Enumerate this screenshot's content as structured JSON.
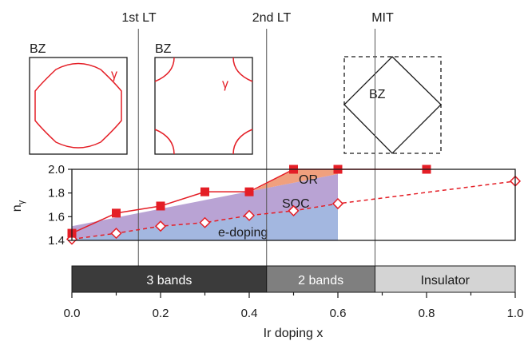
{
  "chart_data": {
    "type": "line",
    "xlabel": "Ir doping x",
    "ylabel": "n",
    "ylabel_sub": "γ",
    "xlim": [
      0.0,
      1.0
    ],
    "ylim": [
      1.4,
      2.0
    ],
    "x_ticks": [
      "0.0",
      "0.2",
      "0.4",
      "0.6",
      "0.8",
      "1.0"
    ],
    "y_ticks": [
      "1.4",
      "1.6",
      "1.8",
      "2.0"
    ],
    "series": [
      {
        "marker": "filled-square",
        "color": "#e41e26",
        "line": "solid",
        "x": [
          0.0,
          0.1,
          0.2,
          0.3,
          0.4,
          0.5,
          0.6,
          0.8
        ],
        "y": [
          1.46,
          1.63,
          1.69,
          1.81,
          1.81,
          2.0,
          2.0,
          2.0
        ]
      },
      {
        "marker": "open-diamond",
        "color": "#e41e26",
        "line": "dashed",
        "x": [
          0.0,
          0.1,
          0.2,
          0.3,
          0.4,
          0.5,
          0.6,
          1.0
        ],
        "y": [
          1.41,
          1.46,
          1.52,
          1.55,
          1.61,
          1.65,
          1.71,
          1.9
        ]
      }
    ],
    "regions": [
      {
        "label": "e-doping",
        "color": "#a3b7e0"
      },
      {
        "label": "SOC",
        "color": "#b9a3d4"
      },
      {
        "label": "OR",
        "color": "#f0a07e"
      }
    ],
    "transitions": [
      {
        "label": "1st LT",
        "x": 0.15
      },
      {
        "label": "2nd LT",
        "x": 0.45
      },
      {
        "label": "MIT",
        "x": 0.7
      }
    ],
    "phase_bar": [
      {
        "label": "3 bands",
        "from": 0.0,
        "to": 0.45,
        "color": "#3b3b3b"
      },
      {
        "label": "2 bands",
        "from": 0.45,
        "to": 0.7,
        "color": "#7f7f7f"
      },
      {
        "label": "Insulator",
        "from": 0.7,
        "to": 1.0,
        "color": "#d4d4d4"
      }
    ],
    "insets": [
      {
        "label": "BZ",
        "pocket_label": "γ"
      },
      {
        "label": "BZ",
        "pocket_label": "γ"
      },
      {
        "label": "BZ"
      }
    ]
  }
}
